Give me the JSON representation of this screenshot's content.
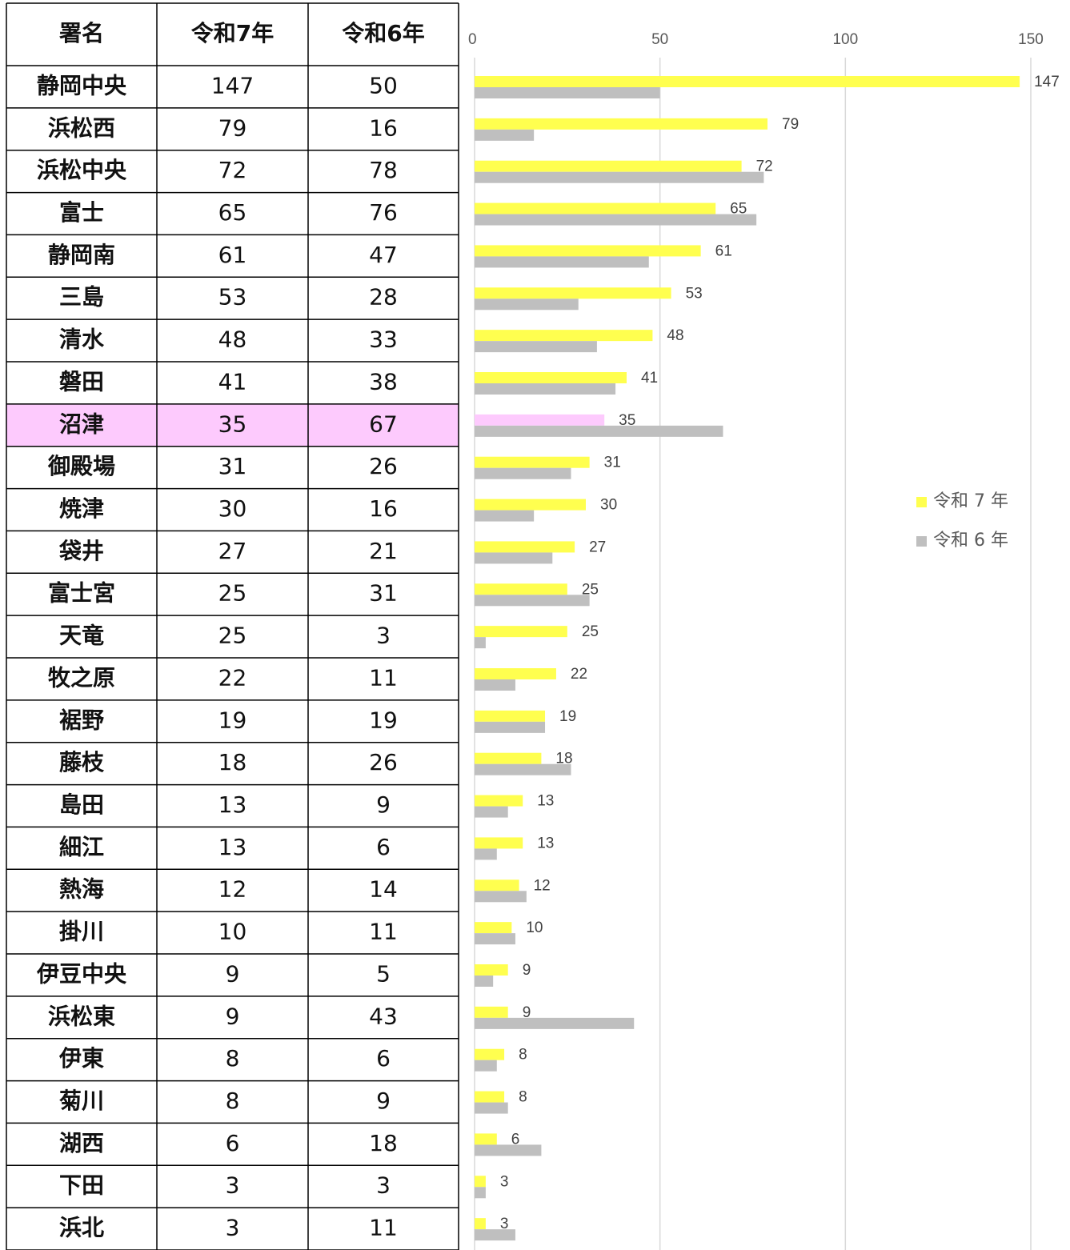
{
  "table": {
    "header": [
      "署名",
      "令和7年",
      "令和6年"
    ]
  },
  "chart_data": {
    "type": "hbar",
    "categories": [
      "静岡中央",
      "浜松西",
      "浜松中央",
      "富士",
      "静岡南",
      "三島",
      "清水",
      "磐田",
      "沼津",
      "御殿場",
      "焼津",
      "袋井",
      "富士宮",
      "天竜",
      "牧之原",
      "裾野",
      "藤枝",
      "島田",
      "細江",
      "熱海",
      "掛川",
      "伊豆中央",
      "浜松東",
      "伊東",
      "菊川",
      "湖西",
      "下田",
      "浜北"
    ],
    "series": [
      {
        "name": "令和 7 年",
        "color": "#ffff4f",
        "values": [
          147,
          79,
          72,
          65,
          61,
          53,
          48,
          41,
          35,
          31,
          30,
          27,
          25,
          25,
          22,
          19,
          18,
          13,
          13,
          12,
          10,
          9,
          9,
          8,
          8,
          6,
          3,
          3
        ]
      },
      {
        "name": "令和 6 年",
        "color": "#bfbfbf",
        "values": [
          50,
          16,
          78,
          76,
          47,
          28,
          33,
          38,
          67,
          26,
          16,
          21,
          31,
          3,
          11,
          19,
          26,
          9,
          6,
          14,
          11,
          5,
          43,
          6,
          9,
          18,
          3,
          11
        ]
      }
    ],
    "xlim": [
      0,
      150
    ],
    "xticks": [
      0,
      50,
      100,
      150
    ],
    "grid": true,
    "highlight": {
      "category": "沼津",
      "color": "#fdcafd"
    }
  }
}
